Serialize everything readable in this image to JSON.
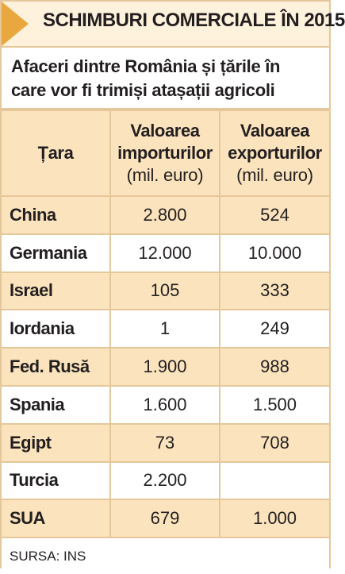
{
  "title": "SCHIMBURI COMERCIALE ÎN 2015",
  "subtitle_line1": "Afaceri dintre România și țările în",
  "subtitle_line2": "care vor fi trimiși atașații agricoli",
  "headers": {
    "country": "Țara",
    "imports": [
      "Valoarea",
      "importurilor",
      "(mil. euro)"
    ],
    "exports": [
      "Valoarea",
      "exporturilor",
      "(mil. euro)"
    ]
  },
  "rows": [
    {
      "country": "China",
      "imports": "2.800",
      "exports": "524"
    },
    {
      "country": "Germania",
      "imports": "12.000",
      "exports": "10.000"
    },
    {
      "country": "Israel",
      "imports": "105",
      "exports": "333"
    },
    {
      "country": "Iordania",
      "imports": "1",
      "exports": "249"
    },
    {
      "country": "Fed. Rusă",
      "imports": "1.900",
      "exports": "988"
    },
    {
      "country": "Spania",
      "imports": "1.600",
      "exports": "1.500"
    },
    {
      "country": "Egipt",
      "imports": "73",
      "exports": "708"
    },
    {
      "country": "Turcia",
      "imports": "2.200",
      "exports": ""
    },
    {
      "country": "SUA",
      "imports": "679",
      "exports": "1.000"
    }
  ],
  "source": "SURSA: INS",
  "colors": {
    "accent": "#e9a83f",
    "row_tint": "#fbe4bd",
    "border": "#e4c79a"
  }
}
